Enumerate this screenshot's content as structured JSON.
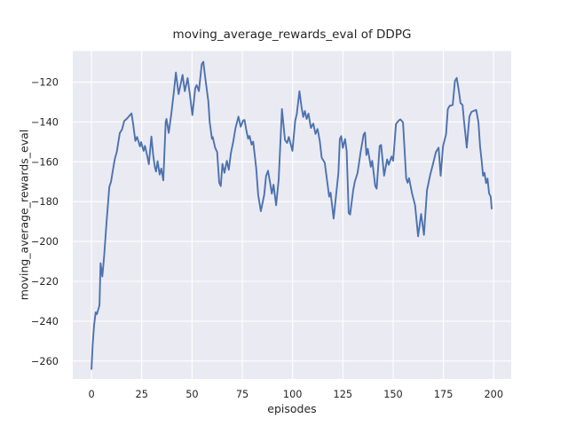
{
  "chart_data": {
    "type": "line",
    "title": "moving_average_rewards_eval of DDPG",
    "xlabel": "episodes",
    "ylabel": "moving_average_rewards_eval",
    "legend": "none",
    "grid": true,
    "style": {
      "axes_background": "#EAEAF2",
      "grid_color": "#FFFFFF",
      "line_color": "#4C72B0",
      "text_color": "#262626",
      "figure_background": "#FFFFFF"
    },
    "xlim": [
      -9.3,
      208.7
    ],
    "ylim": [
      -269.0,
      -104.4
    ],
    "x_ticks": [
      0,
      25,
      50,
      75,
      100,
      125,
      150,
      175,
      200
    ],
    "x_tick_labels": [
      "0",
      "25",
      "50",
      "75",
      "100",
      "125",
      "150",
      "175",
      "200"
    ],
    "y_ticks": [
      -120,
      -140,
      -160,
      -180,
      -200,
      -220,
      -240,
      -260
    ],
    "y_tick_labels": [
      "−120",
      "−140",
      "−160",
      "−180",
      "−200",
      "−220",
      "−240",
      "−260"
    ],
    "series": [
      {
        "name": "moving_average_rewards_eval",
        "points": [
          [
            0,
            -264
          ],
          [
            0.6,
            -252
          ],
          [
            1.3,
            -242
          ],
          [
            2.1,
            -235.5
          ],
          [
            2.7,
            -236.5
          ],
          [
            3.3,
            -234.3
          ],
          [
            4,
            -232
          ],
          [
            4.5,
            -210.9
          ],
          [
            5.4,
            -217.6
          ],
          [
            6.3,
            -207
          ],
          [
            7.5,
            -190
          ],
          [
            8.9,
            -172.5
          ],
          [
            9.7,
            -170
          ],
          [
            10.6,
            -164.5
          ],
          [
            11.6,
            -158.5
          ],
          [
            12.6,
            -155
          ],
          [
            14.1,
            -145.5
          ],
          [
            15.2,
            -143.8
          ],
          [
            16.3,
            -139.5
          ],
          [
            17.5,
            -138.5
          ],
          [
            18.5,
            -137.3
          ],
          [
            19.9,
            -135.7
          ],
          [
            20.7,
            -141
          ],
          [
            21.8,
            -149.5
          ],
          [
            22.7,
            -147.5
          ],
          [
            24.1,
            -152.3
          ],
          [
            24.7,
            -150.1
          ],
          [
            25.9,
            -154.5
          ],
          [
            26.6,
            -152
          ],
          [
            27.8,
            -157.5
          ],
          [
            28.5,
            -161.2
          ],
          [
            29.8,
            -147.3
          ],
          [
            30.7,
            -156.7
          ],
          [
            31.5,
            -162.7
          ],
          [
            32.1,
            -164.9
          ],
          [
            32.9,
            -159.7
          ],
          [
            33.9,
            -166.4
          ],
          [
            34.7,
            -163.4
          ],
          [
            35.7,
            -169.3
          ],
          [
            36.9,
            -140
          ],
          [
            37.3,
            -138.5
          ],
          [
            38.4,
            -145.5
          ],
          [
            39.7,
            -136
          ],
          [
            41,
            -124.5
          ],
          [
            42,
            -115.2
          ],
          [
            43.3,
            -126
          ],
          [
            44.2,
            -121.8
          ],
          [
            45.3,
            -116.4
          ],
          [
            46.4,
            -124.6
          ],
          [
            47.8,
            -118
          ],
          [
            48.9,
            -126.1
          ],
          [
            50.2,
            -136.5
          ],
          [
            51.6,
            -123
          ],
          [
            52.3,
            -121.5
          ],
          [
            53.4,
            -124.5
          ],
          [
            54.8,
            -111
          ],
          [
            55.6,
            -109.8
          ],
          [
            56.6,
            -118
          ],
          [
            57.4,
            -124.1
          ],
          [
            58.1,
            -129.5
          ],
          [
            58.8,
            -140.2
          ],
          [
            59.9,
            -148.4
          ],
          [
            60.3,
            -147.6
          ],
          [
            61.5,
            -153
          ],
          [
            62.5,
            -155.1
          ],
          [
            63.5,
            -170.5
          ],
          [
            64.3,
            -172.2
          ],
          [
            65.1,
            -161
          ],
          [
            66.1,
            -165.5
          ],
          [
            67.3,
            -159.5
          ],
          [
            68.3,
            -164
          ],
          [
            69.3,
            -155.8
          ],
          [
            70.5,
            -149.9
          ],
          [
            71.6,
            -143.2
          ],
          [
            73.1,
            -137.3
          ],
          [
            74.2,
            -142.4
          ],
          [
            75.4,
            -139.3
          ],
          [
            76.1,
            -139
          ],
          [
            77.1,
            -144.7
          ],
          [
            77.9,
            -148.4
          ],
          [
            78.6,
            -147
          ],
          [
            79.6,
            -151.4
          ],
          [
            80.4,
            -149.9
          ],
          [
            81.9,
            -163.3
          ],
          [
            82.9,
            -176.6
          ],
          [
            84.2,
            -184.8
          ],
          [
            85.9,
            -176.6
          ],
          [
            86.8,
            -167.1
          ],
          [
            87.8,
            -164.5
          ],
          [
            88.9,
            -171
          ],
          [
            89.7,
            -176
          ],
          [
            90.5,
            -171.5
          ],
          [
            91.8,
            -181.8
          ],
          [
            93.1,
            -169
          ],
          [
            94.7,
            -133.5
          ],
          [
            96.2,
            -149.1
          ],
          [
            97.3,
            -150.5
          ],
          [
            98.1,
            -147.5
          ],
          [
            99.9,
            -154.5
          ],
          [
            101.3,
            -139.5
          ],
          [
            102.1,
            -136
          ],
          [
            103.4,
            -124.6
          ],
          [
            104.5,
            -133
          ],
          [
            105.3,
            -137.5
          ],
          [
            106.1,
            -134.5
          ],
          [
            107,
            -138.5
          ],
          [
            107.9,
            -135.8
          ],
          [
            109.1,
            -143
          ],
          [
            110.3,
            -140.8
          ],
          [
            111.4,
            -146
          ],
          [
            112.4,
            -143.5
          ],
          [
            113.5,
            -149.5
          ],
          [
            114.5,
            -158
          ],
          [
            116,
            -160.5
          ],
          [
            118.2,
            -177.5
          ],
          [
            118.9,
            -175.5
          ],
          [
            120.4,
            -188.5
          ],
          [
            122.8,
            -165.6
          ],
          [
            123.5,
            -148.6
          ],
          [
            124.2,
            -147.1
          ],
          [
            125,
            -153
          ],
          [
            126.1,
            -148.6
          ],
          [
            126.9,
            -154.5
          ],
          [
            127.9,
            -185.7
          ],
          [
            128.6,
            -186.5
          ],
          [
            130.1,
            -174.5
          ],
          [
            130.9,
            -170.1
          ],
          [
            132.3,
            -165.6
          ],
          [
            133.8,
            -155.2
          ],
          [
            135.3,
            -146.3
          ],
          [
            136,
            -145.3
          ],
          [
            136.7,
            -156.6
          ],
          [
            137.4,
            -153.5
          ],
          [
            138.9,
            -162.5
          ],
          [
            139.6,
            -159.5
          ],
          [
            141.1,
            -172.2
          ],
          [
            141.8,
            -173.5
          ],
          [
            143.3,
            -152.1
          ],
          [
            144,
            -151.5
          ],
          [
            145.5,
            -167
          ],
          [
            147,
            -158.8
          ],
          [
            147.8,
            -161.5
          ],
          [
            149.2,
            -157.3
          ],
          [
            150,
            -159.5
          ],
          [
            151.4,
            -141
          ],
          [
            152.8,
            -139.3
          ],
          [
            153.6,
            -138.7
          ],
          [
            154.9,
            -140.2
          ],
          [
            156.5,
            -168.4
          ],
          [
            157.2,
            -170.5
          ],
          [
            157.9,
            -168.2
          ],
          [
            159.4,
            -175.9
          ],
          [
            160.9,
            -181.8
          ],
          [
            162.4,
            -197.4
          ],
          [
            163.9,
            -186.2
          ],
          [
            165.3,
            -196.7
          ],
          [
            166.8,
            -174.4
          ],
          [
            168.3,
            -167
          ],
          [
            169.8,
            -161
          ],
          [
            171.3,
            -155.1
          ],
          [
            172.6,
            -152.9
          ],
          [
            173.6,
            -167
          ],
          [
            174.8,
            -152.1
          ],
          [
            176.3,
            -146.2
          ],
          [
            177.2,
            -133.5
          ],
          [
            178.1,
            -131.9
          ],
          [
            179.6,
            -131.5
          ],
          [
            180.7,
            -119.4
          ],
          [
            181.6,
            -117.9
          ],
          [
            182.6,
            -124
          ],
          [
            183.5,
            -130.5
          ],
          [
            184.5,
            -131.5
          ],
          [
            185.2,
            -139
          ],
          [
            186,
            -147
          ],
          [
            186.6,
            -152.9
          ],
          [
            187.9,
            -137.3
          ],
          [
            188.9,
            -135
          ],
          [
            190.1,
            -134.4
          ],
          [
            191.3,
            -134
          ],
          [
            192.4,
            -140.2
          ],
          [
            193.2,
            -152.1
          ],
          [
            194,
            -159.5
          ],
          [
            194.7,
            -167
          ],
          [
            195.4,
            -165.5
          ],
          [
            196.2,
            -170.7
          ],
          [
            196.9,
            -168.4
          ],
          [
            197.7,
            -175.9
          ],
          [
            198.5,
            -177.5
          ],
          [
            199,
            -183.5
          ]
        ]
      }
    ]
  }
}
